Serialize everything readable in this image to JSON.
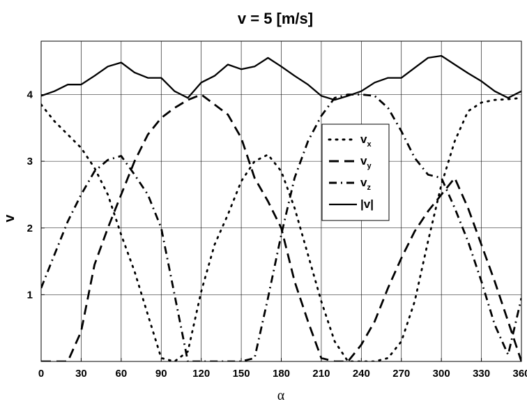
{
  "chart_data": {
    "type": "line",
    "title": "v = 5 [m/s]",
    "xlabel": "α",
    "ylabel": "v",
    "xlim": [
      0,
      360
    ],
    "ylim": [
      0,
      4.8
    ],
    "xticks": [
      0,
      30,
      60,
      90,
      120,
      150,
      180,
      210,
      240,
      270,
      300,
      330,
      360
    ],
    "yticks": [
      1,
      2,
      3,
      4
    ],
    "grid": true,
    "legend_position": "center-right",
    "series": [
      {
        "name": "v_x",
        "label": "v",
        "sub": "x",
        "style": "dotted",
        "color": "#000000",
        "x": [
          0,
          10,
          20,
          30,
          40,
          50,
          60,
          70,
          80,
          90,
          100,
          110,
          120,
          130,
          140,
          150,
          160,
          170,
          180,
          190,
          200,
          210,
          220,
          230,
          240,
          250,
          260,
          270,
          280,
          290,
          300,
          310,
          320,
          330,
          340,
          350,
          360
        ],
        "y": [
          3.85,
          3.6,
          3.4,
          3.2,
          2.9,
          2.5,
          1.9,
          1.35,
          0.7,
          0.05,
          0.0,
          0.15,
          1.05,
          1.75,
          2.2,
          2.7,
          3.0,
          3.1,
          2.85,
          2.3,
          1.6,
          0.9,
          0.3,
          0.0,
          0.0,
          0.0,
          0.05,
          0.3,
          0.9,
          1.8,
          2.65,
          3.3,
          3.75,
          3.88,
          3.92,
          3.93,
          3.95
        ]
      },
      {
        "name": "v_y",
        "label": "v",
        "sub": "y",
        "style": "dashed",
        "color": "#000000",
        "x": [
          0,
          10,
          20,
          30,
          40,
          50,
          60,
          70,
          80,
          90,
          100,
          110,
          120,
          130,
          140,
          150,
          160,
          170,
          180,
          190,
          200,
          210,
          220,
          230,
          240,
          250,
          260,
          270,
          280,
          290,
          300,
          310,
          320,
          330,
          340,
          350,
          360
        ],
        "y": [
          0.0,
          0.0,
          0.0,
          0.45,
          1.45,
          2.0,
          2.5,
          3.0,
          3.4,
          3.65,
          3.8,
          3.92,
          4.0,
          3.85,
          3.7,
          3.35,
          2.75,
          2.4,
          2.0,
          1.2,
          0.6,
          0.05,
          0.0,
          0.0,
          0.25,
          0.6,
          1.1,
          1.55,
          1.95,
          2.25,
          2.5,
          2.75,
          2.3,
          1.75,
          1.2,
          0.6,
          0.0
        ]
      },
      {
        "name": "v_z",
        "label": "v",
        "sub": "z",
        "style": "dashdot",
        "color": "#000000",
        "x": [
          0,
          10,
          20,
          30,
          40,
          50,
          60,
          70,
          80,
          90,
          100,
          110,
          120,
          130,
          140,
          150,
          160,
          170,
          180,
          190,
          200,
          210,
          220,
          230,
          240,
          250,
          260,
          270,
          280,
          290,
          300,
          310,
          320,
          330,
          340,
          350,
          360
        ],
        "y": [
          1.1,
          1.6,
          2.1,
          2.5,
          2.85,
          3.02,
          3.08,
          2.8,
          2.5,
          2.0,
          1.0,
          0.0,
          0.0,
          0.0,
          0.0,
          0.0,
          0.05,
          0.95,
          1.9,
          2.75,
          3.3,
          3.68,
          3.95,
          4.0,
          4.0,
          3.98,
          3.8,
          3.45,
          3.05,
          2.8,
          2.75,
          2.3,
          1.8,
          1.2,
          0.55,
          0.1,
          0.95
        ]
      },
      {
        "name": "|v|",
        "label": "|v|",
        "sub": "",
        "style": "solid",
        "color": "#000000",
        "x": [
          0,
          10,
          20,
          30,
          40,
          50,
          60,
          70,
          80,
          90,
          100,
          110,
          120,
          130,
          140,
          150,
          160,
          170,
          180,
          190,
          200,
          210,
          220,
          230,
          240,
          250,
          260,
          270,
          280,
          290,
          300,
          310,
          320,
          330,
          340,
          350,
          360
        ],
        "y": [
          3.98,
          4.05,
          4.15,
          4.15,
          4.28,
          4.42,
          4.48,
          4.33,
          4.25,
          4.25,
          4.05,
          3.95,
          4.18,
          4.28,
          4.45,
          4.38,
          4.42,
          4.55,
          4.42,
          4.28,
          4.15,
          3.98,
          3.92,
          3.98,
          4.05,
          4.18,
          4.25,
          4.25,
          4.4,
          4.55,
          4.58,
          4.45,
          4.32,
          4.2,
          4.05,
          3.95,
          4.05
        ]
      }
    ]
  }
}
